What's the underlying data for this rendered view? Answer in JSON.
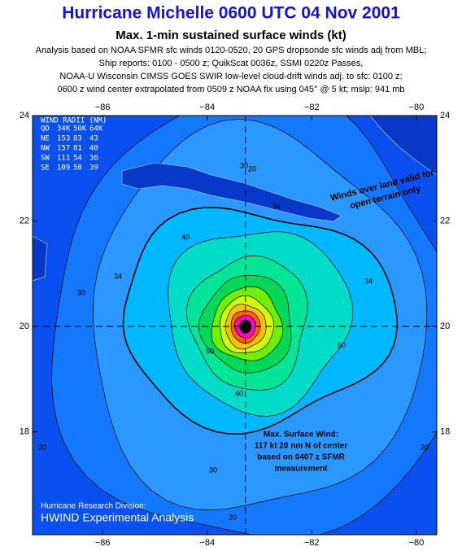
{
  "header": {
    "title": "Hurricane Michelle 0600 UTC 04 Nov 2001",
    "subtitle": "Max. 1-min sustained surface winds (kt)",
    "notes": [
      "Analysis based on NOAA SFMR sfc winds 0120-0520,   20 GPS dropsonde sfc winds adj from MBL;",
      "Ship reports: 0100 - 0500 z;  QuikScat 0036z, SSMI 0220z Passes,",
      "NOAA-U Wisconsin CIMSS GOES SWIR low-level cloud-drift winds adj. to sfc: 0100 z;",
      "0600 z wind center extrapolated from 0509 z NOAA fix using 045° @ 5 kt; mslp: 941 mb"
    ]
  },
  "map": {
    "xlim": [
      -87.34,
      -79.61
    ],
    "ylim": [
      16.05,
      24
    ],
    "xticks": [
      {
        "value": -86,
        "label": "−86"
      },
      {
        "value": -84,
        "label": "−84"
      },
      {
        "value": -82,
        "label": "−82"
      },
      {
        "value": -80,
        "label": "−80"
      }
    ],
    "yticks": [
      18,
      20,
      22,
      24
    ],
    "center": {
      "lon": -83.27,
      "lat": 20.0
    }
  },
  "wind_radii": {
    "title": "WIND RADII (NM)",
    "header": [
      "QD",
      "34K",
      "50K",
      "64K"
    ],
    "rows": [
      [
        "NE",
        153,
        83,
        43
      ],
      [
        "NW",
        157,
        81,
        40
      ],
      [
        "SW",
        111,
        54,
        36
      ],
      [
        "SE",
        109,
        58,
        39
      ]
    ]
  },
  "contour_labels": [
    "20",
    "30",
    "34",
    "40",
    "50",
    "30",
    "34",
    "40",
    "20",
    "30",
    "20",
    "20",
    "34",
    "50"
  ],
  "annotations": {
    "land": [
      "Winds over land valid for",
      "open terrain only"
    ],
    "max_wind": [
      "Max. Surface Wind:",
      "117 kt 20 nm N of center",
      "based on  0407 z SFMR",
      "measurement"
    ],
    "footer": [
      "Hurricane Research Division:",
      "HWIND Experimental Analysis"
    ]
  }
}
